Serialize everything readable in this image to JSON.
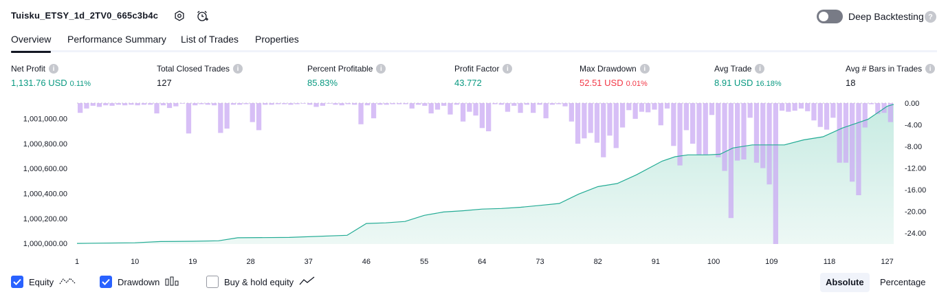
{
  "header": {
    "strategy_title": "Tuisku_ETSY_1d_2TV0_665c3b4c",
    "icons": [
      "settings-icon",
      "alarm-add-icon"
    ],
    "deep_backtesting_label": "Deep Backtesting",
    "deep_backtesting_on": false,
    "help_text": "?"
  },
  "tabs": [
    {
      "label": "Overview",
      "active": true
    },
    {
      "label": "Performance Summary",
      "active": false
    },
    {
      "label": "List of Trades",
      "active": false
    },
    {
      "label": "Properties",
      "active": false
    }
  ],
  "metrics": [
    {
      "label": "Net Profit",
      "value": "1,131.76 USD",
      "sub": "0.11%",
      "tone": "pos"
    },
    {
      "label": "Total Closed Trades",
      "value": "127",
      "sub": "",
      "tone": "neutral"
    },
    {
      "label": "Percent Profitable",
      "value": "85.83%",
      "sub": "",
      "tone": "pos"
    },
    {
      "label": "Profit Factor",
      "value": "43.772",
      "sub": "",
      "tone": "pos"
    },
    {
      "label": "Max Drawdown",
      "value": "52.51 USD",
      "sub": "0.01%",
      "tone": "neg"
    },
    {
      "label": "Avg Trade",
      "value": "8.91 USD",
      "sub": "16.18%",
      "tone": "pos"
    },
    {
      "label": "Avg # Bars in Trades",
      "value": "18",
      "sub": "",
      "tone": "neutral"
    }
  ],
  "chart_data": {
    "type": "area",
    "x_ticks": [
      "1",
      "10",
      "19",
      "28",
      "37",
      "46",
      "55",
      "64",
      "73",
      "82",
      "91",
      "100",
      "109",
      "118",
      "127"
    ],
    "x_range": [
      1,
      128
    ],
    "left_ticks": [
      "1,000,000.00",
      "1,000,200.00",
      "1,000,400.00",
      "1,000,600.00",
      "1,000,800.00",
      "1,001,000.00"
    ],
    "left_range": [
      999995,
      1001125
    ],
    "right_ticks": [
      "0.00",
      "-4.00",
      "-8.00",
      "-12.00",
      "-16.00",
      "-20.00",
      "-24.00"
    ],
    "right_range": [
      -26,
      0
    ],
    "colors": {
      "equity_line": "#22ab94",
      "equity_fill_top": "#c7ebe2",
      "equity_fill_bottom": "#edf8f5",
      "drawdown_bar": "#c9a9f3",
      "grid": "#c8cad1"
    },
    "equity": {
      "x": [
        1,
        5,
        10,
        14,
        19,
        23,
        26,
        34,
        43,
        46,
        49,
        52,
        55,
        58,
        61,
        64,
        67,
        70,
        73,
        76,
        79,
        82,
        85,
        88,
        92,
        94,
        96,
        99,
        101,
        103,
        106,
        109,
        111,
        114,
        117,
        120,
        124,
        127,
        128
      ],
      "y": [
        1000000,
        1000002,
        1000005,
        1000015,
        1000017,
        1000021,
        1000045,
        1000048,
        1000065,
        1000160,
        1000165,
        1000176,
        1000225,
        1000252,
        1000262,
        1000275,
        1000280,
        1000290,
        1000305,
        1000320,
        1000395,
        1000455,
        1000480,
        1000550,
        1000660,
        1000695,
        1000710,
        1000710,
        1000715,
        1000765,
        1000790,
        1000790,
        1000790,
        1000830,
        1000855,
        1000925,
        1000995,
        1001100,
        1001115
      ]
    },
    "drawdown": [
      -1.8,
      -1.0,
      -0.8,
      -0.5,
      -0.7,
      -0.6,
      -0.4,
      -0.5,
      -0.5,
      -0.3,
      -0.4,
      -0.3,
      -0.3,
      -0.4,
      -0.3,
      -0.3,
      -0.3,
      -0.3,
      -1.9,
      -0.4,
      -0.9,
      -0.9,
      -0.6,
      -0.2,
      -0.1,
      -5.6,
      -4.8,
      -0.4,
      -0.2,
      -0.3,
      -0.3,
      -0.4,
      -0.3,
      -0.5,
      -0.4,
      -0.3,
      -0.3,
      -0.3,
      -0.2,
      -0.2,
      -0.2,
      -0.3,
      -0.3,
      -0.3,
      -0.3,
      -0.3,
      -0.2,
      -0.2,
      -0.2,
      -1.1,
      -0.3,
      -0.2,
      -0.1,
      -0.1,
      -0.3,
      -0.2,
      -0.7,
      -0.5,
      -0.3,
      -0.1,
      -0.3,
      -1.1,
      -0.4,
      -0.2,
      -0.2,
      -0.3,
      -3.9,
      -2.9,
      -0.4,
      -2.8,
      -0.3,
      -0.3,
      -0.3,
      -0.2,
      -0.2,
      -0.2,
      -0.2,
      -0.2,
      -1.0,
      -0.3,
      -0.3,
      -0.5,
      -0.9,
      -1.9,
      -1.2,
      -0.3,
      -0.5,
      -2.1,
      -2.0,
      -0.3,
      -3.4,
      -0.4,
      -1.6,
      -2.3,
      -2.7,
      -4.6,
      -5.8,
      -5.2,
      -0.2,
      -2.2,
      -0.3,
      -1.6,
      -3.2,
      -0.5,
      -1.8,
      -2.7,
      -0.3,
      -1.8,
      -1.6,
      -0.3,
      -2.8,
      -2.1,
      -0.3,
      -0.2,
      -0.1,
      -0.6,
      -3.4,
      -1.3,
      -1.3,
      -0.1,
      -0.3,
      -7.4,
      -7.3,
      -9.2,
      -10.0,
      -6.0,
      -4.2,
      -8.3,
      -2.5,
      -4.3,
      -1.3,
      -2.9,
      -1.9,
      -1.6,
      -1.7,
      -2.6,
      -1.2,
      -4.1,
      -4.9,
      -1.0,
      -7.9,
      -5.4,
      -11.5,
      -10.6,
      -6.8,
      -5.9,
      -6.0,
      -4.0,
      -2.2,
      -1.1,
      -2.2,
      -0.7,
      -9.1,
      -12.4,
      -21.2,
      -14.6,
      -10.6,
      -10.4,
      -3.0,
      -2.7,
      -2.5,
      -1.8,
      -2.3,
      -2.2,
      -1.4,
      -1.3,
      -1.4,
      -1.3,
      -1.6,
      -1.4,
      -1.1,
      -1.0,
      -1.5,
      -1.7,
      -3.2,
      -4.4,
      -6.5,
      -4.9,
      -2.7,
      -4.0,
      -2.2,
      -2.6,
      -1.4,
      -0.8,
      -0.5,
      -0.3,
      -0.3,
      -0.2,
      -0.4,
      -0.6,
      -1.8,
      -0.7,
      -0.3,
      -0.2
    ],
    "drawdown_overrides": {
      "110": -26.0,
      "109": -15.0,
      "108": -12.0,
      "107": -11.0,
      "102": -12.5,
      "101": -10.0,
      "99": -9.5,
      "98": -9.5,
      "121": -11.0,
      "122": -14.5,
      "123": -17.0,
      "120": -11.0,
      "124": -4.5,
      "126": -2.0,
      "128": -3.5,
      "23": -5.5,
      "24": -4.7,
      "28": -3.5,
      "29": -5.0,
      "80": -6.5,
      "79": -7.5,
      "81": -5.5,
      "86": -4.5,
      "96": -5.0,
      "97": -7.5
    }
  },
  "legend": [
    {
      "label": "Equity",
      "checked": true,
      "icon": "equity-line-icon"
    },
    {
      "label": "Drawdown",
      "checked": true,
      "icon": "drawdown-bars-icon"
    },
    {
      "label": "Buy & hold equity",
      "checked": false,
      "icon": "buy-hold-line-icon"
    }
  ],
  "view_modes": [
    {
      "label": "Absolute",
      "active": true
    },
    {
      "label": "Percentage",
      "active": false
    }
  ]
}
